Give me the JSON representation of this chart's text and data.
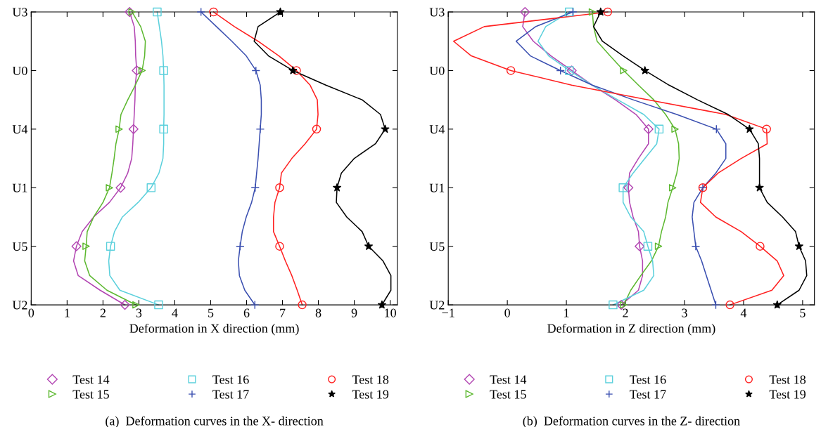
{
  "chart_data": [
    {
      "type": "line",
      "orientation": "horizontal",
      "xlabel": "Deformation in X direction (mm)",
      "categories": [
        "U3",
        null,
        null,
        null,
        "U0",
        null,
        null,
        null,
        "U4",
        null,
        null,
        null,
        "U1",
        null,
        null,
        null,
        "U5",
        null,
        null,
        null,
        "U2"
      ],
      "xlim": [
        0,
        10.2
      ],
      "xticks": [
        0,
        1,
        2,
        3,
        4,
        5,
        6,
        7,
        8,
        9,
        10
      ],
      "grid": false,
      "legend": "bottom",
      "line_style": "solid",
      "annotations": [
        "(a)  Deformation curves in the X- direction"
      ],
      "series": [
        {
          "color": "#b245b2",
          "values": [
            2.74,
            2.87,
            2.9,
            2.91,
            2.94,
            2.9,
            2.89,
            2.87,
            2.85,
            2.83,
            2.8,
            2.69,
            2.49,
            2.18,
            1.74,
            1.42,
            1.26,
            1.18,
            1.31,
            1.92,
            2.61
          ]
        },
        {
          "color": "#5cb82f",
          "values": [
            2.81,
            3.05,
            3.18,
            3.16,
            3.09,
            2.9,
            2.69,
            2.5,
            2.45,
            2.36,
            2.31,
            2.25,
            2.18,
            2.0,
            1.74,
            1.56,
            1.53,
            1.49,
            1.63,
            2.11,
            2.92
          ]
        },
        {
          "color": "#5bd0dc",
          "values": [
            3.51,
            3.57,
            3.63,
            3.67,
            3.69,
            3.7,
            3.7,
            3.7,
            3.69,
            3.69,
            3.67,
            3.56,
            3.34,
            2.98,
            2.54,
            2.32,
            2.21,
            2.16,
            2.19,
            2.47,
            3.55
          ]
        },
        {
          "color": "#3a4fb0",
          "values": [
            4.73,
            5.16,
            5.59,
            5.99,
            6.26,
            6.38,
            6.41,
            6.41,
            6.38,
            6.35,
            6.32,
            6.28,
            6.24,
            6.14,
            5.99,
            5.88,
            5.82,
            5.77,
            5.8,
            5.95,
            6.23
          ]
        },
        {
          "color": "#ff2020",
          "values": [
            5.08,
            5.66,
            6.32,
            6.9,
            7.39,
            7.77,
            7.97,
            7.99,
            7.95,
            7.63,
            7.26,
            6.97,
            6.92,
            6.79,
            6.75,
            6.75,
            6.92,
            7.08,
            7.26,
            7.41,
            7.55
          ]
        },
        {
          "color": "#000000",
          "values": [
            6.94,
            6.32,
            6.21,
            6.61,
            7.29,
            8.21,
            9.22,
            9.73,
            9.86,
            9.59,
            9.0,
            8.64,
            8.52,
            8.5,
            8.79,
            9.22,
            9.4,
            9.8,
            10.02,
            10.02,
            9.77
          ]
        },
        {
          "type": "scatter",
          "name": "Test 14",
          "color": "#b245b2",
          "marker": "diamond",
          "values": [
            2.74,
            null,
            null,
            null,
            2.94,
            null,
            null,
            null,
            2.85,
            null,
            null,
            null,
            2.49,
            null,
            null,
            null,
            1.26,
            null,
            null,
            null,
            2.61
          ]
        },
        {
          "type": "scatter",
          "name": "Test 15",
          "color": "#5cb82f",
          "marker": "triangle",
          "values": [
            2.81,
            null,
            null,
            null,
            3.09,
            null,
            null,
            null,
            2.45,
            null,
            null,
            null,
            2.18,
            null,
            null,
            null,
            1.53,
            null,
            null,
            null,
            2.92
          ]
        },
        {
          "type": "scatter",
          "name": "Test 16",
          "color": "#5bd0dc",
          "marker": "square",
          "values": [
            3.51,
            null,
            null,
            null,
            3.69,
            null,
            null,
            null,
            3.69,
            null,
            null,
            null,
            3.34,
            null,
            null,
            null,
            2.21,
            null,
            null,
            null,
            3.55
          ]
        },
        {
          "type": "scatter",
          "name": "Test 17",
          "color": "#3a4fb0",
          "marker": "cross",
          "values": [
            4.73,
            null,
            null,
            null,
            6.26,
            null,
            null,
            null,
            6.38,
            null,
            null,
            null,
            6.24,
            null,
            null,
            null,
            5.82,
            null,
            null,
            null,
            6.23
          ]
        },
        {
          "type": "scatter",
          "name": "Test 18",
          "color": "#ff2020",
          "marker": "circle",
          "values": [
            5.08,
            null,
            null,
            null,
            7.39,
            null,
            null,
            null,
            7.95,
            null,
            null,
            null,
            6.92,
            null,
            null,
            null,
            6.92,
            null,
            null,
            null,
            7.55
          ]
        },
        {
          "type": "scatter",
          "name": "Test 19",
          "color": "#000000",
          "marker": "star",
          "values": [
            6.94,
            null,
            null,
            null,
            7.29,
            null,
            null,
            null,
            9.86,
            null,
            null,
            null,
            8.52,
            null,
            null,
            null,
            9.4,
            null,
            null,
            null,
            9.77
          ]
        }
      ]
    },
    {
      "type": "line",
      "orientation": "horizontal",
      "xlabel": "Deformation in Z direction (mm)",
      "categories": [
        "U3",
        null,
        null,
        null,
        "U0",
        null,
        null,
        null,
        "U4",
        null,
        null,
        null,
        "U1",
        null,
        null,
        null,
        "U5",
        null,
        null,
        null,
        "U2"
      ],
      "xlim": [
        -1,
        5.2
      ],
      "xticks": [
        {
          "value": -1,
          "label": "−1"
        },
        0,
        1,
        2,
        3,
        4,
        5
      ],
      "grid": false,
      "legend": "bottom",
      "line_style": "solid",
      "annotations": [
        "(b)  Deformation curves in the Z- direction"
      ],
      "series": [
        {
          "color": "#b245b2",
          "values": [
            0.3,
            0.26,
            0.44,
            0.74,
            1.09,
            1.44,
            1.83,
            2.18,
            2.39,
            2.39,
            2.22,
            2.07,
            2.05,
            2.07,
            2.13,
            2.22,
            2.24,
            2.29,
            2.29,
            2.22,
            1.93
          ]
        },
        {
          "color": "#5cb82f",
          "values": [
            1.44,
            1.46,
            1.52,
            1.74,
            1.97,
            2.22,
            2.48,
            2.68,
            2.84,
            2.9,
            2.91,
            2.87,
            2.8,
            2.72,
            2.68,
            2.61,
            2.56,
            2.44,
            2.26,
            2.09,
            1.97
          ]
        },
        {
          "color": "#5bd0dc",
          "values": [
            1.05,
            0.65,
            0.52,
            0.7,
            1.05,
            1.44,
            1.87,
            2.31,
            2.57,
            2.53,
            2.33,
            2.13,
            1.96,
            1.96,
            2.09,
            2.31,
            2.38,
            2.46,
            2.48,
            2.31,
            1.79
          ]
        },
        {
          "color": "#3a4fb0",
          "values": [
            1.11,
            0.48,
            0.15,
            0.39,
            0.9,
            1.44,
            2.13,
            2.87,
            3.54,
            3.7,
            3.7,
            3.53,
            3.31,
            3.16,
            3.13,
            3.16,
            3.19,
            3.29,
            3.37,
            3.45,
            3.53
          ]
        },
        {
          "color": "#ff2020",
          "values": [
            1.7,
            -0.39,
            -0.91,
            -0.61,
            0.06,
            1.09,
            2.39,
            3.7,
            4.39,
            4.4,
            3.96,
            3.57,
            3.31,
            3.27,
            3.53,
            3.96,
            4.28,
            4.57,
            4.68,
            4.48,
            3.77
          ]
        },
        {
          "color": "#000000",
          "values": [
            1.58,
            1.46,
            1.61,
            1.96,
            2.33,
            2.74,
            3.22,
            3.74,
            4.1,
            4.25,
            4.27,
            4.27,
            4.27,
            4.4,
            4.66,
            4.88,
            4.94,
            5.05,
            5.07,
            4.94,
            4.57
          ]
        },
        {
          "type": "scatter",
          "name": "Test 14",
          "color": "#b245b2",
          "marker": "diamond",
          "values": [
            0.3,
            null,
            null,
            null,
            1.09,
            null,
            null,
            null,
            2.39,
            null,
            null,
            null,
            2.05,
            null,
            null,
            null,
            2.24,
            null,
            null,
            null,
            1.93
          ]
        },
        {
          "type": "scatter",
          "name": "Test 15",
          "color": "#5cb82f",
          "marker": "triangle",
          "values": [
            1.44,
            null,
            null,
            null,
            1.97,
            null,
            null,
            null,
            2.84,
            null,
            null,
            null,
            2.8,
            null,
            null,
            null,
            2.56,
            null,
            null,
            null,
            1.97
          ]
        },
        {
          "type": "scatter",
          "name": "Test 16",
          "color": "#5bd0dc",
          "marker": "square",
          "values": [
            1.05,
            null,
            null,
            null,
            1.05,
            null,
            null,
            null,
            2.57,
            null,
            null,
            null,
            1.96,
            null,
            null,
            null,
            2.38,
            null,
            null,
            null,
            1.79
          ]
        },
        {
          "type": "scatter",
          "name": "Test 17",
          "color": "#3a4fb0",
          "marker": "cross",
          "values": [
            1.11,
            null,
            null,
            null,
            0.9,
            null,
            null,
            null,
            3.54,
            null,
            null,
            null,
            3.31,
            null,
            null,
            null,
            3.19,
            null,
            null,
            null,
            3.53
          ]
        },
        {
          "type": "scatter",
          "name": "Test 18",
          "color": "#ff2020",
          "marker": "circle",
          "values": [
            1.7,
            null,
            null,
            null,
            0.06,
            null,
            null,
            null,
            4.39,
            null,
            null,
            null,
            3.31,
            null,
            null,
            null,
            4.28,
            null,
            null,
            null,
            3.77
          ]
        },
        {
          "type": "scatter",
          "name": "Test 19",
          "color": "#000000",
          "marker": "star",
          "values": [
            1.58,
            null,
            null,
            null,
            2.33,
            null,
            null,
            null,
            4.1,
            null,
            null,
            null,
            4.27,
            null,
            null,
            null,
            4.94,
            null,
            null,
            null,
            4.57
          ]
        }
      ]
    }
  ]
}
